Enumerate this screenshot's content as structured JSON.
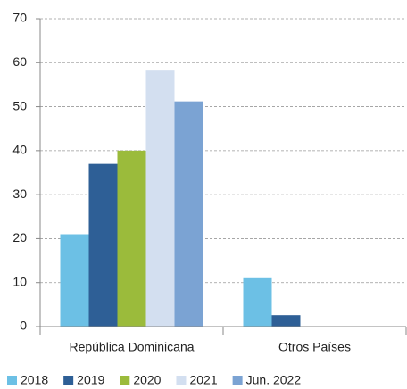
{
  "chart_data": {
    "type": "bar",
    "categories": [
      "República Dominicana",
      "Otros Países"
    ],
    "series": [
      {
        "name": "2018",
        "color": "#6cc0e5",
        "values": [
          21,
          11
        ]
      },
      {
        "name": "2019",
        "color": "#2e5f96",
        "values": [
          37,
          2.6
        ]
      },
      {
        "name": "2020",
        "color": "#9bbb3b",
        "values": [
          40,
          0
        ]
      },
      {
        "name": "2021",
        "color": "#d3dff0",
        "values": [
          58.2,
          0
        ]
      },
      {
        "name": "Jun. 2022",
        "color": "#7ba3d3",
        "values": [
          51.2,
          0
        ]
      }
    ],
    "ylim": [
      0,
      70
    ],
    "yticks": [
      0,
      10,
      20,
      30,
      40,
      50,
      60,
      70
    ],
    "grid": true,
    "legend": "bottom"
  }
}
